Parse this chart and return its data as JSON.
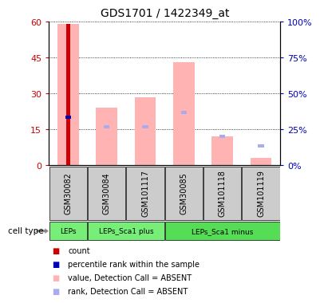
{
  "title": "GDS1701 / 1422349_at",
  "samples": [
    "GSM30082",
    "GSM30084",
    "GSM101117",
    "GSM30085",
    "GSM101118",
    "GSM101119"
  ],
  "value_bars": [
    59.0,
    24.0,
    28.5,
    43.0,
    12.0,
    3.0
  ],
  "rank_markers": [
    20.0,
    16.0,
    16.0,
    22.0,
    12.0,
    8.0
  ],
  "count_value": 59.0,
  "count_index": 0,
  "ylim": [
    0,
    60
  ],
  "yticks": [
    0,
    15,
    30,
    45,
    60
  ],
  "ytick_labels_left": [
    "0",
    "15",
    "30",
    "45",
    "60"
  ],
  "ytick_labels_right": [
    "0%",
    "25%",
    "50%",
    "75%",
    "100%"
  ],
  "color_red": "#cc0000",
  "color_blue": "#0000bb",
  "color_pink": "#ffb3b3",
  "color_blue_light": "#aaaaee",
  "color_green_light": "#77ee77",
  "color_green_medium": "#55dd55",
  "color_gray": "#cccccc",
  "cell_groups": [
    {
      "label": "LEPs",
      "start": 0,
      "end": 1,
      "color": "#77ee77"
    },
    {
      "label": "LEPs_Sca1 plus",
      "start": 1,
      "end": 3,
      "color": "#77ee77"
    },
    {
      "label": "LEPs_Sca1 minus",
      "start": 3,
      "end": 6,
      "color": "#55dd55"
    }
  ],
  "legend_items": [
    {
      "label": "count",
      "color": "#cc0000",
      "marker": "s"
    },
    {
      "label": "percentile rank within the sample",
      "color": "#0000bb",
      "marker": "s"
    },
    {
      "label": "value, Detection Call = ABSENT",
      "color": "#ffb3b3",
      "marker": "s"
    },
    {
      "label": "rank, Detection Call = ABSENT",
      "color": "#aaaaee",
      "marker": "s"
    }
  ],
  "fig_width": 3.71,
  "fig_height": 3.75,
  "bar_width": 0.55,
  "rank_bar_width": 0.15,
  "count_bar_width": 0.12
}
